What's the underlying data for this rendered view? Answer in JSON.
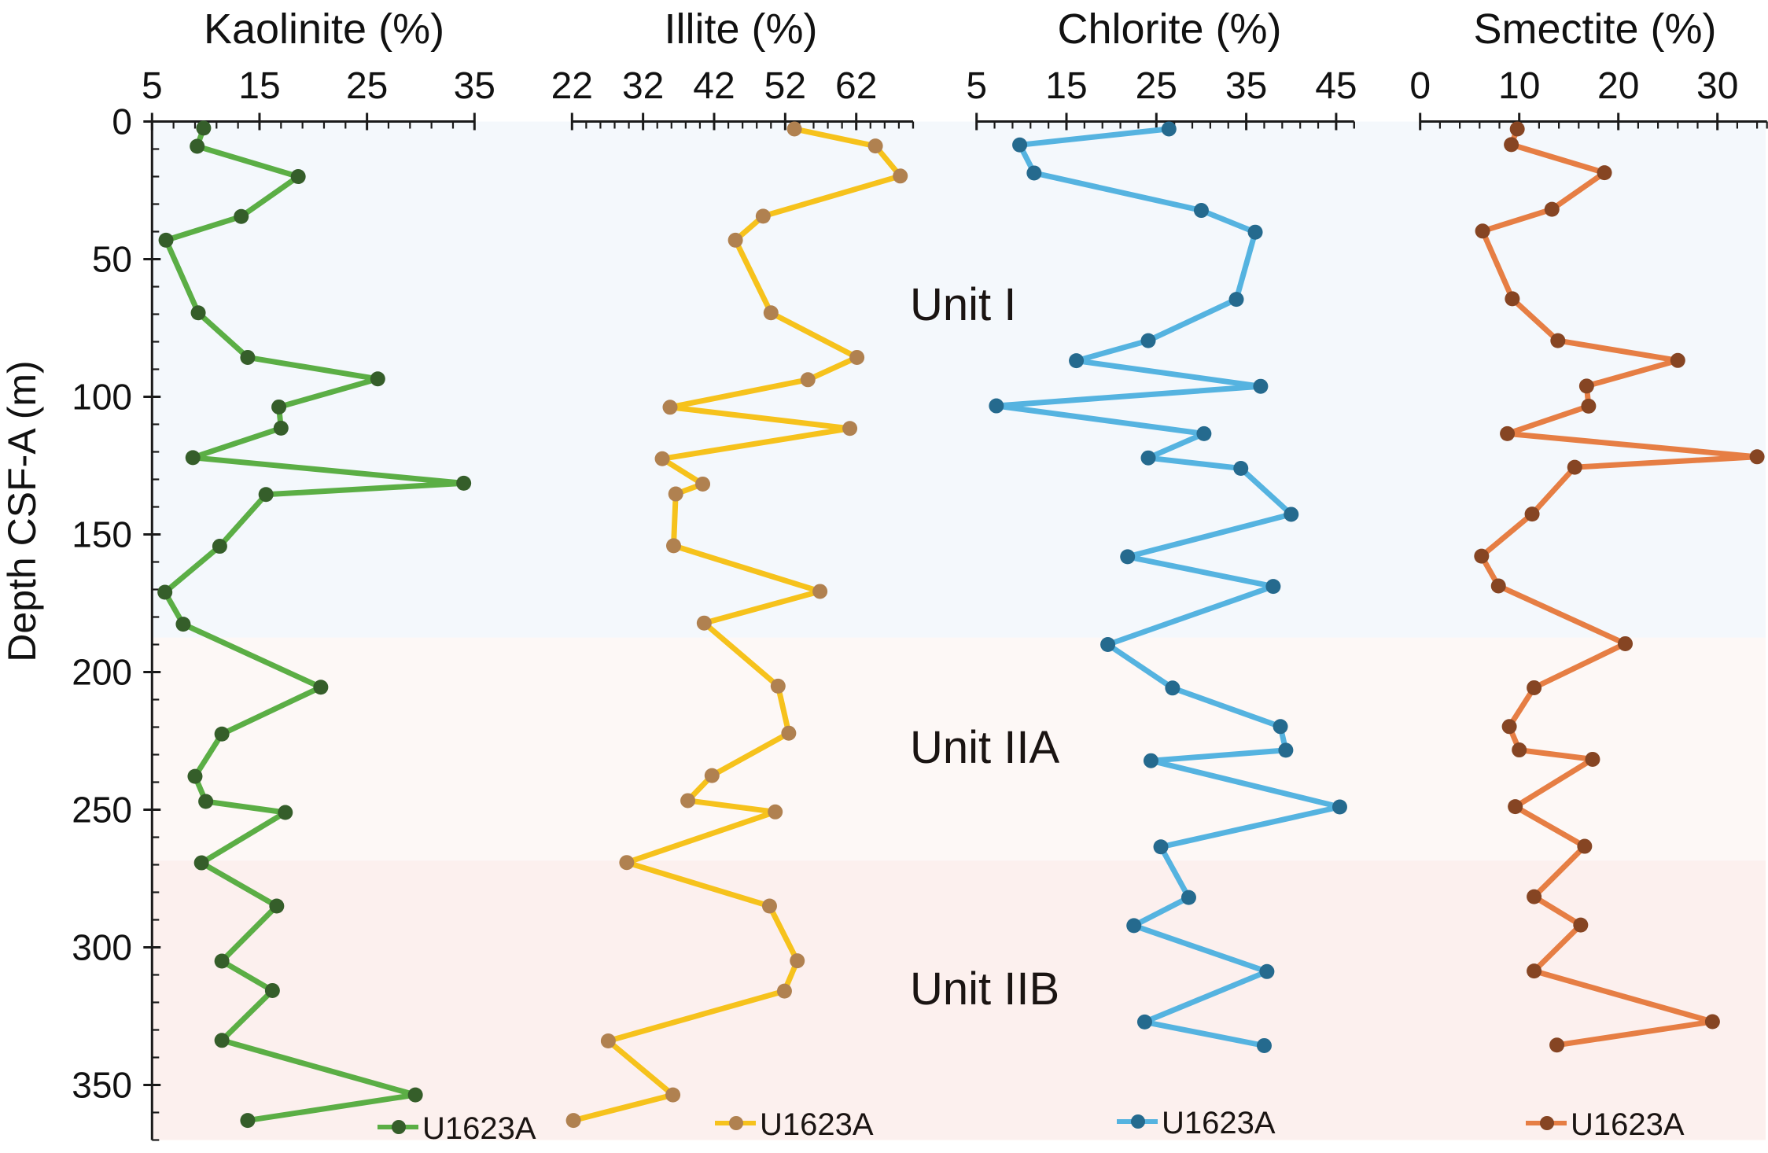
{
  "chart_data": {
    "type": "line",
    "title": "",
    "ylabel": "Depth CSF-A (m)",
    "ylim": [
      0,
      370
    ],
    "y_inverted": true,
    "yticks": [
      0,
      50,
      100,
      150,
      200,
      250,
      300,
      350
    ],
    "y_minor_step": 10,
    "grid": false,
    "units": [
      {
        "name": "Unit I",
        "top": 0,
        "bottom": 187.5,
        "color": "#F4F8FC"
      },
      {
        "name": "Unit IIA",
        "top": 187.5,
        "bottom": 268.5,
        "color": "#FDF8F6"
      },
      {
        "name": "Unit IIB",
        "top": 268.5,
        "bottom": 370,
        "color": "#FCF0EE"
      }
    ],
    "panels": [
      {
        "name": "Kaolinite",
        "title": "Kaolinite (%)",
        "xlim": [
          5,
          35
        ],
        "xticks": [
          5,
          15,
          25,
          35
        ],
        "x_minor_step": 2,
        "line_color": "#5BAE45",
        "marker_color": "#355E2A",
        "legend": "U1623A",
        "depth": [
          2.4,
          9.0,
          20.0,
          34.5,
          43.1,
          69.5,
          85.7,
          93.5,
          103.7,
          111.4,
          122.1,
          131.4,
          135.5,
          154.3,
          171.0,
          182.6,
          205.5,
          222.5,
          237.9,
          247.0,
          251.0,
          269.3,
          285.0,
          305.0,
          315.7,
          333.8,
          353.6,
          362.9
        ],
        "values": [
          9.8,
          9.2,
          18.6,
          13.3,
          6.3,
          9.3,
          13.9,
          26.0,
          16.8,
          17.0,
          8.8,
          34.0,
          15.6,
          11.3,
          6.2,
          7.9,
          20.7,
          11.5,
          9.0,
          10.0,
          17.4,
          9.6,
          16.6,
          11.5,
          16.2,
          11.5,
          29.5,
          13.9
        ]
      },
      {
        "name": "Illite",
        "title": "Illite (%)",
        "xlim": [
          22,
          70
        ],
        "xticks": [
          22,
          32,
          42,
          52,
          62
        ],
        "x_minor_step": 2,
        "line_color": "#F6C21C",
        "marker_color": "#B08150",
        "legend": "U1623A",
        "depth": [
          2.7,
          8.9,
          19.8,
          34.4,
          43.1,
          69.5,
          85.7,
          93.8,
          103.8,
          111.5,
          122.5,
          131.7,
          135.3,
          154.1,
          170.7,
          182.2,
          205.1,
          222.2,
          237.6,
          246.7,
          250.8,
          269.2,
          285.0,
          304.9,
          315.9,
          334.0,
          353.6,
          362.9
        ],
        "values": [
          53.3,
          64.7,
          68.2,
          48.9,
          45.0,
          50.0,
          62.1,
          55.2,
          35.8,
          61.1,
          34.7,
          40.4,
          36.6,
          36.3,
          56.9,
          40.6,
          51.0,
          52.5,
          41.7,
          38.3,
          50.6,
          29.7,
          49.8,
          53.7,
          51.9,
          27.1,
          36.2,
          22.2
        ]
      },
      {
        "name": "Chlorite",
        "title": "Chlorite (%)",
        "xlim": [
          5,
          47
        ],
        "xticks": [
          5,
          15,
          25,
          35,
          45
        ],
        "x_minor_step": 2,
        "line_color": "#55B3E0",
        "marker_color": "#256A8E",
        "legend": "U1623A",
        "depth": [
          2.7,
          8.5,
          18.7,
          32.3,
          40.2,
          64.6,
          79.6,
          86.9,
          96.2,
          103.3,
          113.4,
          122.2,
          126.0,
          142.7,
          158.1,
          168.9,
          190.0,
          205.8,
          219.8,
          228.4,
          232.2,
          249.0,
          263.5,
          281.9,
          292.1,
          308.8,
          327.1,
          335.7
        ],
        "values": [
          26.4,
          9.8,
          11.4,
          30.0,
          36.0,
          33.9,
          24.1,
          16.1,
          36.6,
          7.2,
          30.3,
          24.1,
          34.4,
          40.0,
          21.8,
          38.0,
          19.6,
          26.8,
          38.8,
          39.4,
          24.4,
          45.4,
          25.5,
          28.6,
          22.5,
          37.3,
          23.7,
          37.0
        ]
      },
      {
        "name": "Smectite",
        "title": "Smectite (%)",
        "xlim": [
          0,
          35
        ],
        "xticks": [
          0,
          10,
          20,
          30
        ],
        "x_minor_step": 2,
        "line_color": "#E67E44",
        "marker_color": "#864523",
        "legend": "U1623A",
        "depth": [
          2.7,
          8.4,
          18.6,
          31.9,
          39.8,
          64.4,
          79.6,
          86.8,
          96.1,
          103.4,
          113.4,
          121.8,
          125.6,
          142.6,
          157.9,
          168.7,
          189.7,
          205.7,
          219.8,
          228.3,
          231.7,
          248.9,
          263.3,
          281.6,
          291.9,
          308.6,
          327.0,
          335.5
        ],
        "values": [
          9.8,
          9.2,
          18.6,
          13.3,
          6.3,
          9.3,
          13.9,
          26.0,
          16.8,
          17.0,
          8.8,
          34.0,
          15.6,
          11.3,
          6.2,
          7.9,
          20.7,
          11.5,
          9.0,
          10.0,
          17.4,
          9.6,
          16.6,
          11.5,
          16.2,
          11.5,
          29.5,
          13.8
        ]
      }
    ]
  }
}
